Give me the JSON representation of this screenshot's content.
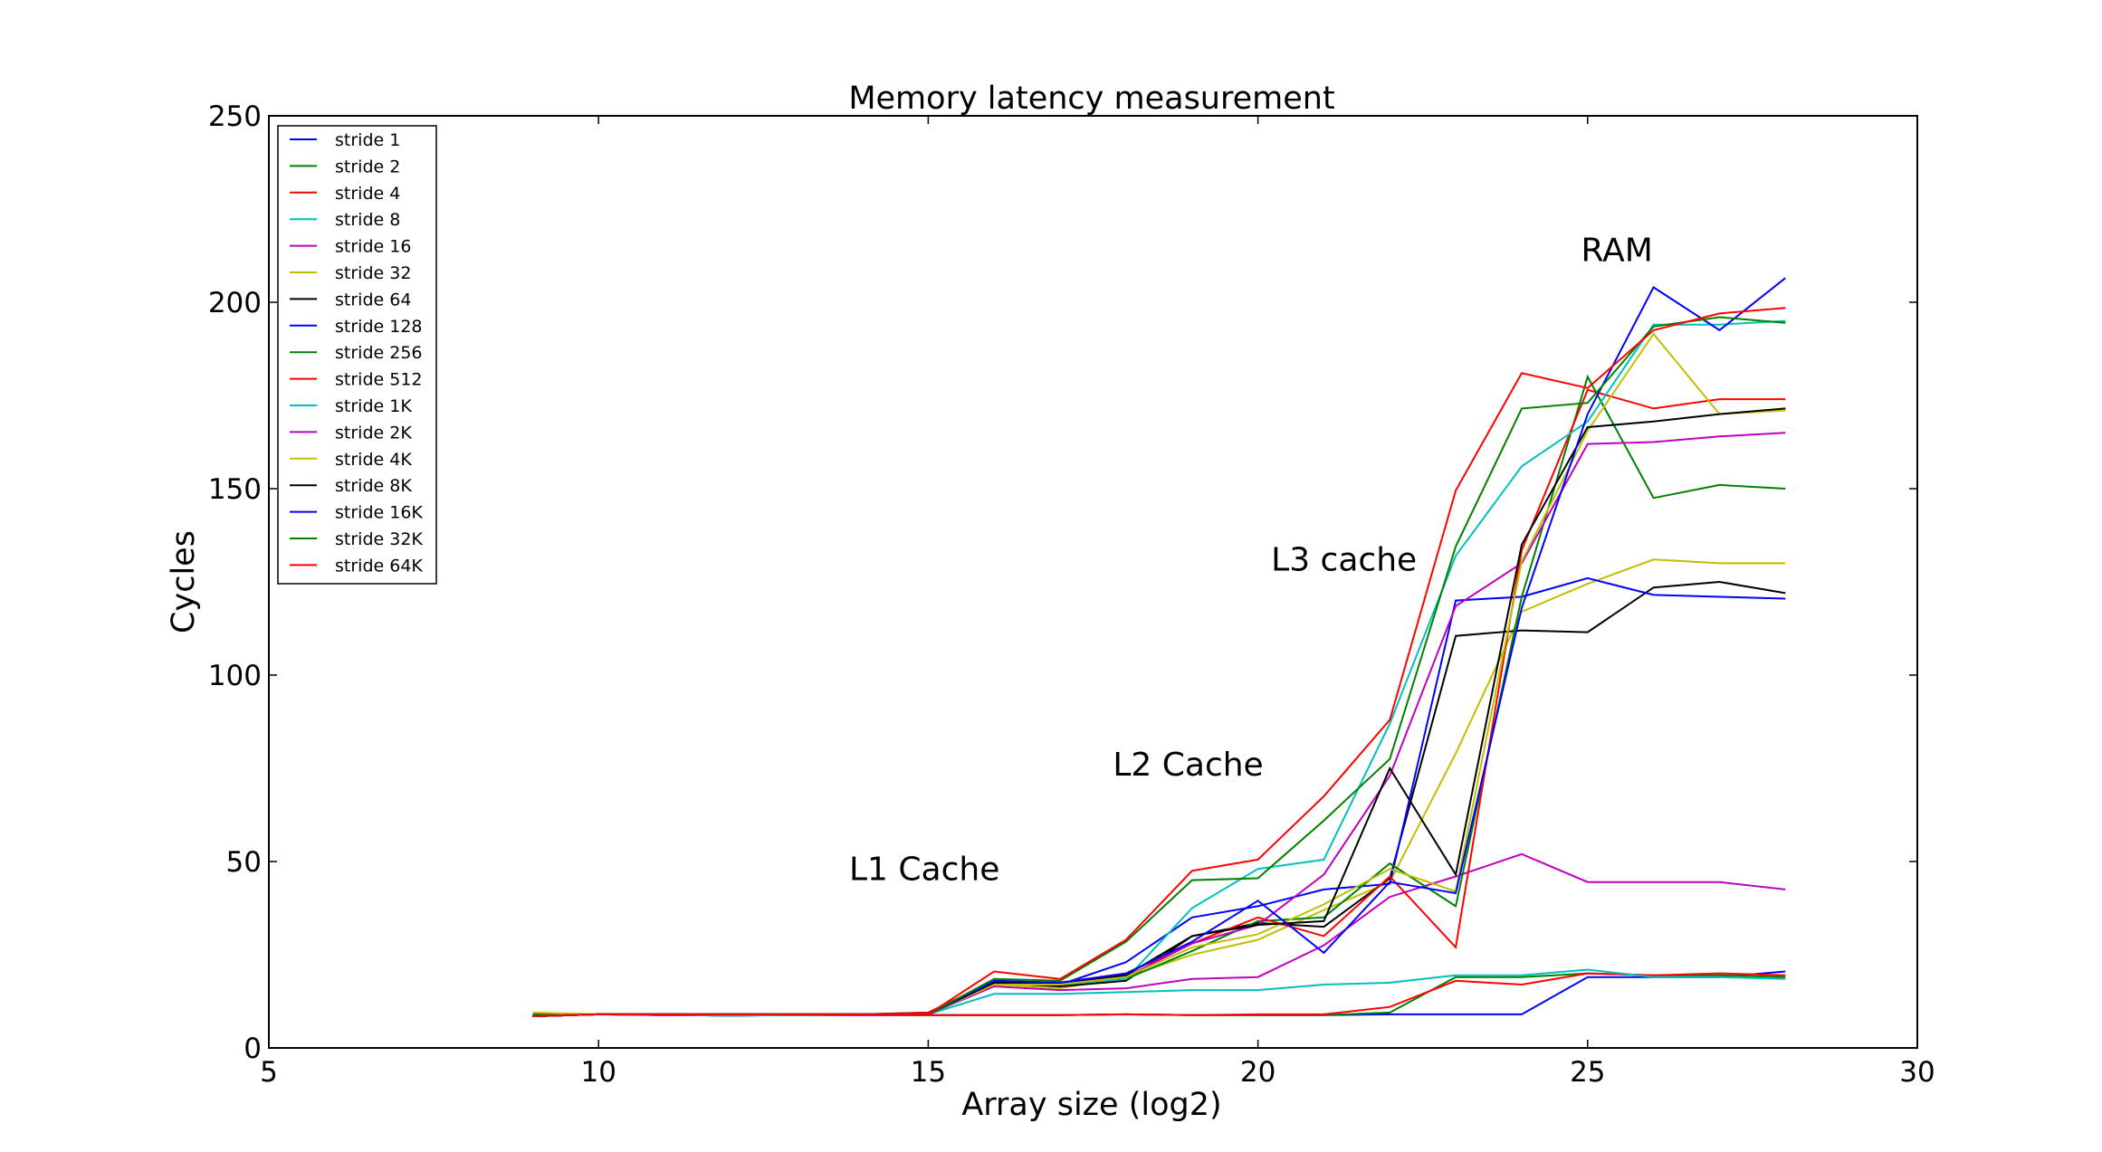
{
  "chart_data": {
    "type": "line",
    "title": "Memory latency measurement",
    "xlabel": "Array size (log2)",
    "ylabel": "Cycles",
    "xlim": [
      5,
      30
    ],
    "ylim": [
      0,
      250
    ],
    "xticks": [
      "5",
      "10",
      "15",
      "20",
      "25",
      "30"
    ],
    "yticks": [
      "0",
      "50",
      "100",
      "150",
      "200",
      "250"
    ],
    "grid": false,
    "legend_position": "top-left",
    "x": [
      9,
      10,
      11,
      12,
      13,
      14,
      15,
      16,
      17,
      18,
      19,
      20,
      21,
      22,
      23,
      24,
      25,
      26,
      27,
      28
    ],
    "annotations": [
      {
        "text": "L1 Cache",
        "x": 13.8,
        "y": 45
      },
      {
        "text": "L2 Cache",
        "x": 17.8,
        "y": 73
      },
      {
        "text": "L3 cache",
        "x": 20.2,
        "y": 128
      },
      {
        "text": "RAM",
        "x": 24.9,
        "y": 211
      }
    ],
    "series": [
      {
        "name": "stride 1",
        "color": "#0000ff",
        "values": [
          8.5,
          9.0,
          8.8,
          8.7,
          8.8,
          8.8,
          8.8,
          8.8,
          8.8,
          9.0,
          8.8,
          8.8,
          8.8,
          9.0,
          9.0,
          9.0,
          19.0,
          19.0,
          19.0,
          20.5
        ]
      },
      {
        "name": "stride 2",
        "color": "#008000",
        "values": [
          9.0,
          9.0,
          8.8,
          8.7,
          8.8,
          8.8,
          8.8,
          8.8,
          8.8,
          9.0,
          8.8,
          8.8,
          8.8,
          9.5,
          19.0,
          19.0,
          20.0,
          19.5,
          19.5,
          19.0
        ]
      },
      {
        "name": "stride 4",
        "color": "#ff0000",
        "values": [
          8.5,
          9.0,
          8.8,
          8.7,
          8.8,
          8.8,
          8.8,
          8.8,
          8.8,
          9.0,
          8.8,
          9.0,
          9.0,
          11.0,
          18.0,
          17.0,
          20.0,
          19.5,
          20.0,
          19.5
        ]
      },
      {
        "name": "stride 8",
        "color": "#00bfbf",
        "values": [
          8.5,
          9.0,
          8.8,
          8.7,
          8.8,
          8.8,
          9.0,
          14.5,
          14.5,
          15.0,
          15.5,
          15.5,
          17.0,
          17.5,
          19.5,
          19.5,
          21.0,
          19.0,
          19.0,
          18.5
        ]
      },
      {
        "name": "stride 16",
        "color": "#bf00bf",
        "values": [
          8.5,
          9.0,
          8.8,
          9.0,
          9.0,
          8.8,
          9.0,
          16.5,
          15.5,
          16.0,
          18.5,
          19.0,
          27.5,
          40.5,
          46.0,
          52.0,
          44.5,
          44.5,
          44.5,
          42.5
        ]
      },
      {
        "name": "stride 32",
        "color": "#bfbf00",
        "values": [
          9.5,
          9.0,
          9.0,
          9.0,
          9.0,
          9.0,
          9.0,
          17.0,
          16.0,
          19.0,
          25.0,
          29.0,
          37.0,
          44.5,
          79.0,
          117.0,
          124.5,
          131.0,
          130.0,
          130.0
        ]
      },
      {
        "name": "stride 64",
        "color": "#000000",
        "values": [
          8.5,
          9.0,
          9.0,
          9.0,
          9.0,
          9.0,
          9.0,
          17.5,
          16.5,
          18.0,
          30.0,
          33.5,
          32.5,
          45.5,
          110.5,
          112.0,
          111.5,
          123.5,
          125.0,
          122.0
        ]
      },
      {
        "name": "stride 128",
        "color": "#0000ff",
        "values": [
          8.5,
          9.0,
          9.0,
          9.0,
          9.0,
          9.0,
          9.5,
          17.5,
          17.0,
          23.0,
          35.0,
          38.0,
          42.5,
          44.0,
          120.0,
          121.0,
          126.0,
          121.5,
          121.0,
          120.5
        ]
      },
      {
        "name": "stride 256",
        "color": "#008000",
        "values": [
          8.5,
          9.0,
          9.0,
          9.0,
          9.0,
          9.0,
          9.0,
          17.5,
          17.0,
          18.5,
          26.0,
          34.0,
          35.0,
          49.5,
          38.0,
          121.0,
          180.0,
          147.5,
          151.0,
          150.0
        ]
      },
      {
        "name": "stride 512",
        "color": "#ff0000",
        "values": [
          8.5,
          9.0,
          9.0,
          9.0,
          9.0,
          9.0,
          9.5,
          18.0,
          17.5,
          20.0,
          28.0,
          35.0,
          30.0,
          46.0,
          27.0,
          133.5,
          176.5,
          171.5,
          174.0,
          174.0
        ]
      },
      {
        "name": "stride 1K",
        "color": "#00bfbf",
        "values": [
          8.5,
          9.0,
          9.0,
          9.0,
          9.0,
          9.0,
          9.0,
          17.0,
          17.0,
          18.5,
          37.5,
          48.0,
          50.5,
          87.0,
          132.0,
          156.0,
          168.0,
          194.0,
          194.0,
          195.0
        ]
      },
      {
        "name": "stride 2K",
        "color": "#bf00bf",
        "values": [
          8.5,
          9.0,
          9.0,
          9.0,
          9.0,
          9.0,
          9.0,
          17.0,
          17.0,
          19.0,
          28.0,
          33.0,
          46.5,
          73.0,
          118.5,
          130.0,
          162.0,
          162.5,
          164.0,
          165.0
        ]
      },
      {
        "name": "stride 4K",
        "color": "#bfbf00",
        "values": [
          8.5,
          9.0,
          9.0,
          9.0,
          9.0,
          9.0,
          9.0,
          17.0,
          17.0,
          19.0,
          27.0,
          30.5,
          38.5,
          48.0,
          42.0,
          130.5,
          165.5,
          191.5,
          170.0,
          171.0
        ]
      },
      {
        "name": "stride 8K",
        "color": "#000000",
        "values": [
          8.5,
          9.0,
          9.0,
          9.0,
          9.0,
          9.0,
          9.0,
          17.5,
          17.5,
          19.5,
          30.0,
          33.0,
          34.0,
          75.0,
          46.5,
          135.0,
          166.5,
          168.0,
          170.0,
          171.5
        ]
      },
      {
        "name": "stride 16K",
        "color": "#0000ff",
        "values": [
          8.5,
          9.0,
          9.0,
          9.0,
          9.0,
          9.0,
          9.0,
          18.0,
          17.5,
          20.0,
          28.5,
          39.5,
          25.5,
          44.5,
          41.5,
          118.0,
          170.0,
          204.0,
          192.5,
          206.5
        ]
      },
      {
        "name": "stride 32K",
        "color": "#008000",
        "values": [
          8.5,
          9.0,
          9.0,
          9.0,
          9.0,
          9.0,
          9.0,
          18.5,
          18.0,
          28.5,
          45.0,
          45.5,
          61.0,
          77.5,
          134.5,
          171.5,
          173.0,
          193.5,
          196.0,
          194.5
        ]
      },
      {
        "name": "stride 64K",
        "color": "#ff0000",
        "values": [
          8.5,
          9.0,
          9.0,
          9.0,
          9.0,
          9.0,
          9.0,
          20.5,
          18.5,
          29.0,
          47.5,
          50.5,
          67.5,
          88.0,
          149.5,
          181.0,
          177.0,
          192.5,
          197.0,
          198.5
        ]
      }
    ]
  }
}
